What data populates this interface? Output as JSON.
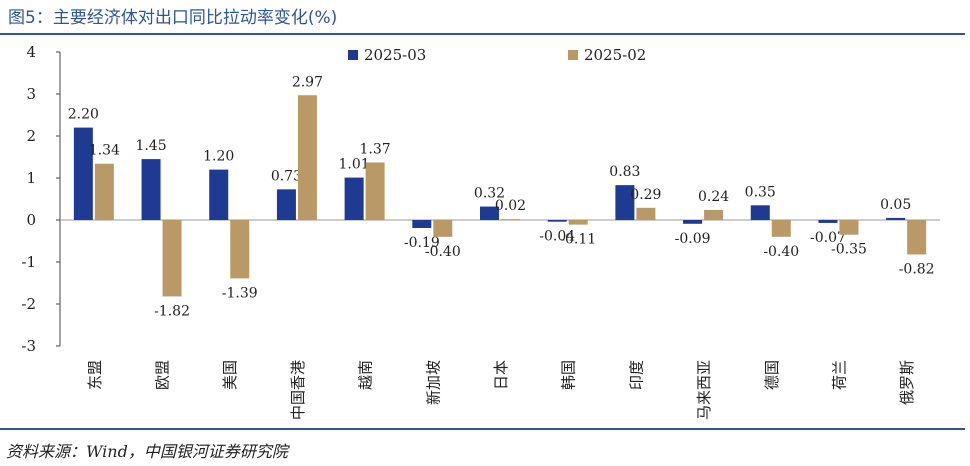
{
  "title": "图5：主要经济体对出口同比拉动率变化(%)",
  "source": "资料来源：Wind，中国银河证券研究院",
  "chart_data": {
    "type": "bar",
    "ylim": [
      -3,
      4
    ],
    "yticks": [
      "4",
      "3",
      "2",
      "1",
      "0",
      "-1",
      "-2",
      "-3"
    ],
    "ytick_values": [
      4,
      3,
      2,
      1,
      0,
      -1,
      -2,
      -3
    ],
    "legend_position": "top",
    "categories": [
      "东盟",
      "欧盟",
      "美国",
      "中国香港",
      "越南",
      "新加坡",
      "日本",
      "韩国",
      "印度",
      "马来西亚",
      "德国",
      "荷兰",
      "俄罗斯"
    ],
    "series": [
      {
        "name": "2025-03",
        "color": "#1F3A93",
        "values": [
          2.2,
          1.45,
          1.2,
          0.73,
          1.01,
          -0.19,
          0.32,
          -0.04,
          0.83,
          -0.09,
          0.35,
          -0.07,
          0.05
        ],
        "labels": [
          "2.20",
          "1.45",
          "1.20",
          "0.73",
          "1.01",
          "-0.19",
          "0.32",
          "-0.04",
          "0.83",
          "-0.09",
          "0.35",
          "-0.07",
          "0.05"
        ]
      },
      {
        "name": "2025-02",
        "color": "#B99A66",
        "values": [
          1.34,
          -1.82,
          -1.39,
          2.97,
          1.37,
          -0.4,
          0.02,
          -0.11,
          0.29,
          0.24,
          -0.4,
          -0.35,
          -0.82
        ],
        "labels": [
          "1.34",
          "-1.82",
          "-1.39",
          "2.97",
          "1.37",
          "-0.40",
          "0.02",
          "-0.11",
          "0.29",
          "0.24",
          "-0.40",
          "-0.35",
          "-0.82"
        ]
      }
    ]
  }
}
